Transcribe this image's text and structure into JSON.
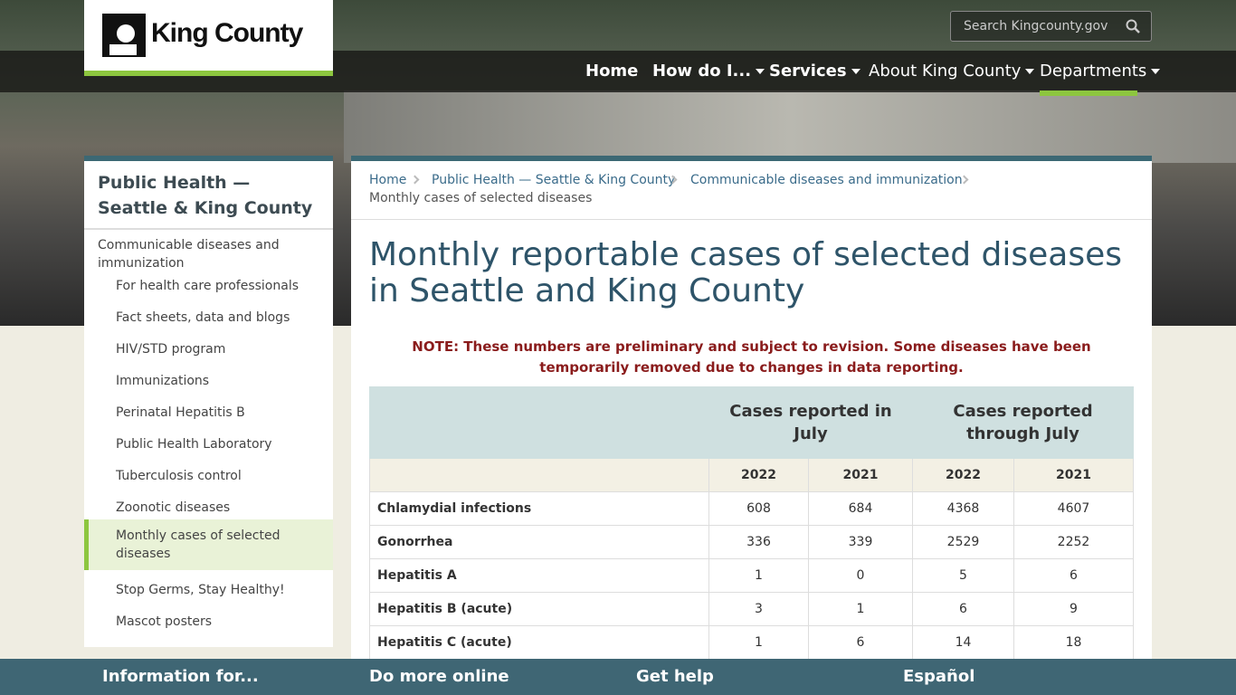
{
  "header": {
    "logo": "King County",
    "search_placeholder": "Search Kingcounty.gov",
    "nav": [
      "Home",
      "How do I...",
      "Services",
      "About King County",
      "Departments"
    ]
  },
  "sidebar": {
    "title": "Public Health — Seattle & King County",
    "section": "Communicable diseases and immunization",
    "links": [
      "For health care professionals",
      "Fact sheets, data and blogs",
      "HIV/STD program",
      "Immunizations",
      "Perinatal Hepatitis B",
      "Public Health Laboratory",
      "Tuberculosis control",
      "Zoonotic diseases",
      "Monthly cases of selected diseases",
      "Stop Germs, Stay Healthy!",
      "Mascot posters"
    ]
  },
  "breadcrumb": [
    "Home",
    "Public Health — Seattle & King County",
    "Communicable diseases and immunization",
    "Monthly cases of selected diseases"
  ],
  "page": {
    "title": "Monthly reportable cases of selected diseases in Seattle and King County",
    "note": "NOTE: These numbers are preliminary and subject to revision. Some diseases have been temporarily removed due to changes in data reporting."
  },
  "table": {
    "column_groups": [
      "Cases reported in July",
      "Cases reported through July"
    ],
    "years": [
      "2022",
      "2021",
      "2022",
      "2021"
    ],
    "rows": [
      {
        "name": "Chlamydial infections",
        "values": [
          608,
          684,
          4368,
          4607
        ]
      },
      {
        "name": "Gonorrhea",
        "values": [
          336,
          339,
          2529,
          2252
        ]
      },
      {
        "name": "Hepatitis A",
        "values": [
          1,
          0,
          5,
          6
        ]
      },
      {
        "name": "Hepatitis B (acute)",
        "values": [
          3,
          1,
          6,
          9
        ]
      },
      {
        "name": "Hepatitis C  (acute)",
        "values": [
          1,
          6,
          14,
          18
        ]
      }
    ]
  },
  "footer": [
    "Information for...",
    "Do more online",
    "Get help",
    "Español"
  ]
}
